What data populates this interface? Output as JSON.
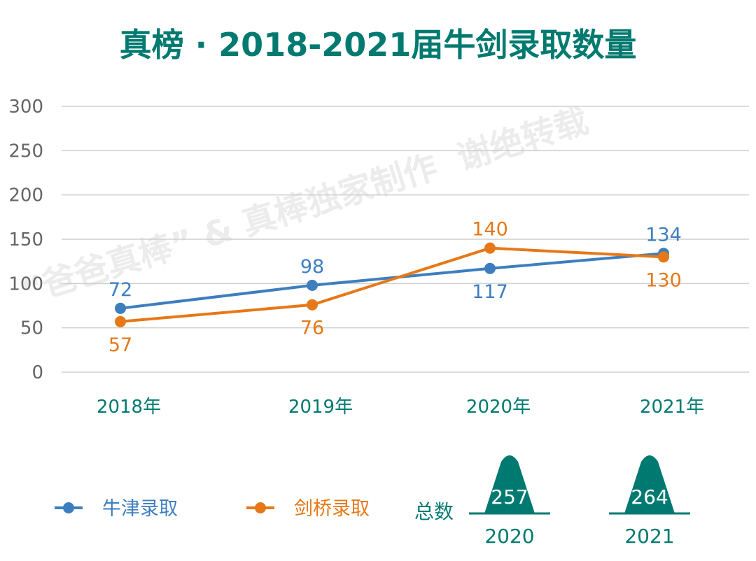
{
  "chart_data": {
    "type": "line",
    "title": "真榜 · 2018-2021届牛剑录取数量",
    "categories": [
      "2018年",
      "2019年",
      "2020年",
      "2021年"
    ],
    "ylim": [
      0,
      300
    ],
    "yticks": [
      0,
      50,
      100,
      150,
      200,
      250,
      300
    ],
    "grid": true,
    "legend_placement": "bottom-left",
    "series": [
      {
        "name": "牛津录取",
        "color": "#3d7ebf",
        "values": [
          72,
          98,
          117,
          134
        ]
      },
      {
        "name": "剑桥录取",
        "color": "#e67817",
        "values": [
          57,
          76,
          140,
          130
        ]
      }
    ]
  },
  "totals": {
    "label": "总数",
    "items": [
      {
        "year": "2020",
        "value": "257"
      },
      {
        "year": "2021",
        "value": "264"
      }
    ],
    "color": "#007a70"
  },
  "watermark": "“爸爸真棒” & 真棒独家制作  谢绝转载"
}
